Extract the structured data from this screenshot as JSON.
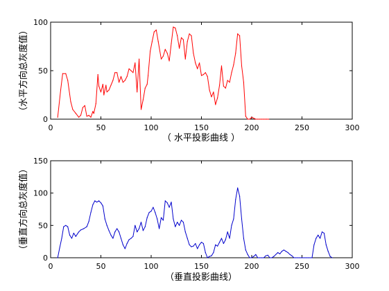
{
  "chart_data": [
    {
      "type": "line",
      "xlabel": "（ 水平投影曲线 ）",
      "ylabel": "（水平方向总灰度值）",
      "xlim": [
        0,
        300
      ],
      "ylim": [
        0,
        100
      ],
      "xticks": [
        "0",
        "50",
        "100",
        "150",
        "200",
        "250",
        "300"
      ],
      "yticks": [
        "0",
        "50",
        "100"
      ],
      "grid": false,
      "series": [
        {
          "color": "#ff0000",
          "x": [
            7,
            10,
            12,
            15,
            17,
            20,
            22,
            25,
            28,
            30,
            32,
            34,
            36,
            38,
            40,
            42,
            43,
            45,
            47,
            48,
            50,
            52,
            53,
            55,
            56,
            58,
            60,
            62,
            64,
            66,
            68,
            70,
            72,
            74,
            76,
            78,
            80,
            82,
            84,
            86,
            88,
            90,
            92,
            94,
            96,
            97,
            99,
            101,
            103,
            105,
            107,
            110,
            112,
            114,
            116,
            118,
            120,
            122,
            124,
            126,
            128,
            130,
            132,
            134,
            136,
            138,
            140,
            142,
            144,
            146,
            148,
            150,
            152,
            154,
            156,
            158,
            160,
            162,
            164,
            166,
            168,
            170,
            172,
            174,
            176,
            178,
            180,
            182,
            184,
            186,
            188,
            190,
            192,
            194,
            196,
            198,
            200,
            202,
            204,
            206,
            208,
            210,
            212,
            214,
            215,
            217
          ],
          "values": [
            2,
            30,
            47,
            47,
            40,
            18,
            10,
            6,
            2,
            4,
            12,
            14,
            3,
            4,
            2,
            8,
            6,
            16,
            46,
            34,
            28,
            36,
            25,
            35,
            28,
            30,
            35,
            40,
            48,
            48,
            38,
            44,
            38,
            40,
            44,
            52,
            50,
            48,
            58,
            28,
            62,
            10,
            20,
            32,
            36,
            45,
            70,
            80,
            90,
            92,
            80,
            62,
            65,
            72,
            68,
            60,
            78,
            95,
            94,
            86,
            73,
            84,
            82,
            62,
            80,
            88,
            86,
            68,
            58,
            52,
            58,
            45,
            46,
            48,
            44,
            30,
            23,
            28,
            15,
            22,
            35,
            55,
            34,
            32,
            40,
            38,
            48,
            56,
            68,
            88,
            86,
            55,
            38,
            3,
            0,
            0,
            2,
            1,
            0,
            0,
            0,
            0,
            0,
            0,
            0,
            0
          ]
        }
      ]
    },
    {
      "type": "line",
      "xlabel": "（垂直投影曲线）",
      "ylabel": "（垂直方向总灰度值）",
      "xlim": [
        0,
        300
      ],
      "ylim": [
        0,
        150
      ],
      "xticks": [
        "0",
        "50",
        "100",
        "150",
        "200",
        "250",
        "300"
      ],
      "yticks": [
        "0",
        "50",
        "100",
        "150"
      ],
      "grid": false,
      "series": [
        {
          "color": "#0000cc",
          "x": [
            7,
            9,
            11,
            13,
            15,
            17,
            19,
            21,
            23,
            25,
            28,
            30,
            33,
            36,
            38,
            40,
            42,
            44,
            46,
            48,
            50,
            52,
            54,
            56,
            58,
            60,
            62,
            64,
            66,
            68,
            70,
            72,
            74,
            76,
            78,
            80,
            82,
            84,
            86,
            88,
            90,
            92,
            94,
            96,
            98,
            100,
            102,
            104,
            106,
            108,
            110,
            112,
            114,
            116,
            118,
            120,
            122,
            124,
            126,
            128,
            130,
            132,
            134,
            136,
            138,
            140,
            142,
            144,
            146,
            148,
            150,
            152,
            154,
            156,
            158,
            160,
            162,
            164,
            166,
            168,
            170,
            172,
            174,
            176,
            178,
            180,
            182,
            184,
            186,
            188,
            190,
            192,
            194,
            196,
            198,
            200,
            202,
            204,
            206,
            208,
            210,
            212,
            214,
            216,
            218,
            220,
            222,
            224,
            226,
            228,
            230,
            232,
            234,
            236,
            238,
            240,
            242,
            244,
            246,
            248,
            250,
            252,
            254,
            256,
            258,
            260,
            262,
            264,
            266,
            268,
            270,
            272,
            274,
            276,
            278,
            280
          ],
          "values": [
            0,
            15,
            30,
            48,
            50,
            48,
            35,
            30,
            38,
            33,
            40,
            43,
            45,
            48,
            56,
            70,
            82,
            88,
            86,
            88,
            85,
            80,
            60,
            50,
            42,
            35,
            30,
            40,
            45,
            40,
            30,
            20,
            14,
            22,
            28,
            30,
            33,
            50,
            40,
            45,
            55,
            42,
            48,
            62,
            70,
            72,
            78,
            70,
            60,
            45,
            62,
            58,
            88,
            85,
            78,
            86,
            60,
            48,
            55,
            50,
            58,
            55,
            40,
            30,
            20,
            17,
            18,
            22,
            14,
            20,
            24,
            22,
            8,
            0,
            2,
            3,
            8,
            20,
            18,
            24,
            30,
            22,
            28,
            40,
            30,
            50,
            60,
            90,
            108,
            95,
            60,
            30,
            12,
            5,
            0,
            0,
            2,
            5,
            0,
            0,
            0,
            0,
            3,
            4,
            0,
            0,
            2,
            5,
            8,
            6,
            10,
            12,
            10,
            8,
            5,
            3,
            0,
            0,
            0,
            0,
            0,
            0,
            0,
            0,
            0,
            0,
            20,
            30,
            35,
            30,
            40,
            38,
            20,
            10,
            2,
            0
          ]
        }
      ]
    }
  ]
}
